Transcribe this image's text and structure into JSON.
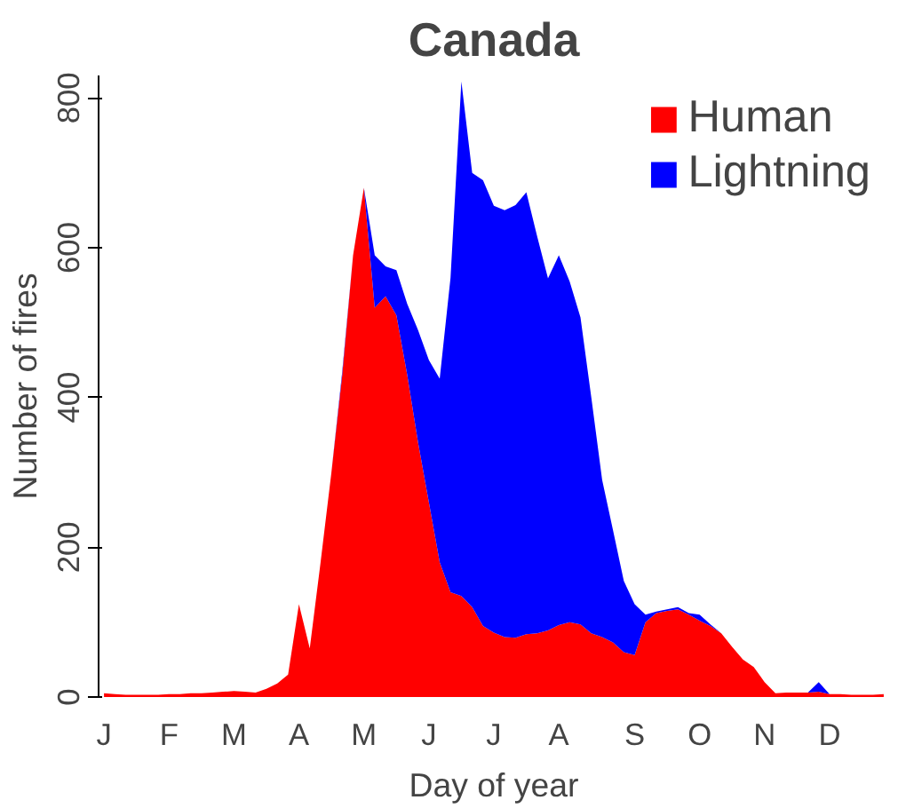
{
  "chart_data": {
    "type": "area",
    "stacked": true,
    "title": "Canada",
    "xlabel": "Day of year",
    "ylabel": "Number of fires",
    "categories": [
      "J",
      null,
      null,
      null,
      null,
      null,
      "F",
      null,
      null,
      null,
      null,
      null,
      "M",
      null,
      null,
      null,
      null,
      null,
      "A",
      null,
      null,
      null,
      null,
      null,
      "M",
      null,
      null,
      null,
      null,
      null,
      "J",
      null,
      null,
      null,
      null,
      null,
      "J",
      null,
      null,
      null,
      null,
      null,
      "A",
      null,
      null,
      null,
      null,
      null,
      null,
      "S",
      null,
      null,
      null,
      null,
      null,
      "O",
      null,
      null,
      null,
      null,
      null,
      "N",
      null,
      null,
      null,
      null,
      null,
      "D",
      null,
      null,
      null,
      null,
      null
    ],
    "series": [
      {
        "name": "Human",
        "color": "#ff0000",
        "values": [
          5,
          4,
          3,
          3,
          3,
          3,
          4,
          4,
          5,
          5,
          6,
          7,
          8,
          7,
          6,
          11,
          18,
          30,
          124,
          65,
          180,
          300,
          430,
          590,
          680,
          520,
          535,
          510,
          430,
          340,
          260,
          180,
          140,
          135,
          120,
          95,
          86,
          80,
          79,
          84,
          85,
          89,
          96,
          100,
          97,
          85,
          80,
          73,
          60,
          56,
          100,
          112,
          115,
          117,
          110,
          102,
          95,
          85,
          67,
          50,
          40,
          20,
          5,
          6,
          6,
          6,
          7,
          4,
          4,
          3,
          3,
          3,
          4
        ]
      },
      {
        "name": "Lightning",
        "color": "#0000ff",
        "values": [
          0,
          0,
          0,
          0,
          0,
          0,
          0,
          0,
          0,
          0,
          0,
          0,
          0,
          0,
          0,
          0,
          0,
          0,
          0,
          0,
          0,
          0,
          5,
          0,
          0,
          70,
          40,
          60,
          95,
          150,
          190,
          245,
          420,
          687,
          580,
          595,
          570,
          570,
          578,
          590,
          530,
          470,
          494,
          455,
          410,
          315,
          210,
          150,
          95,
          68,
          10,
          2,
          2,
          3,
          2,
          8,
          2,
          0,
          0,
          0,
          0,
          0,
          0,
          0,
          0,
          0,
          13,
          0,
          0,
          0,
          0,
          0,
          0
        ]
      }
    ],
    "ylim": [
      0,
      830
    ],
    "yticks": [
      0,
      200,
      400,
      600,
      800
    ],
    "grid": false,
    "legend": "top right"
  }
}
